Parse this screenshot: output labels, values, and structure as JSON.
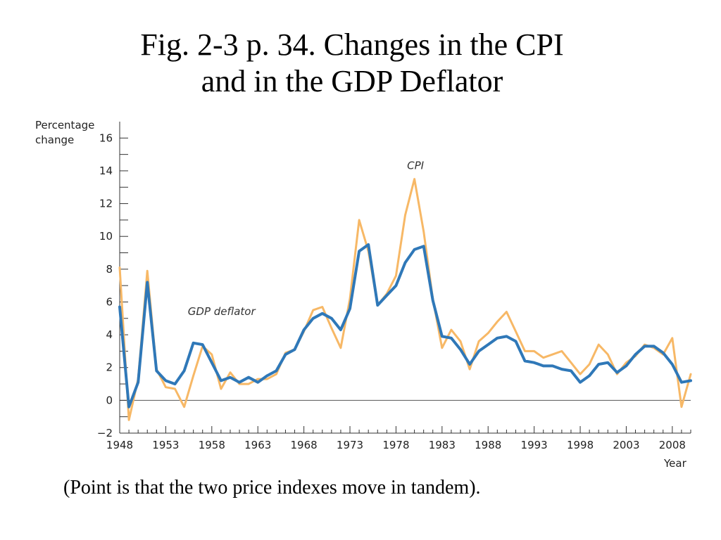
{
  "title_line1": "Fig. 2-3 p. 34. Changes in the CPI",
  "title_line2": "and in the GDP Deflator",
  "caption": "(Point is that the two price indexes move in tandem).",
  "chart_data": {
    "type": "line",
    "ylabel_line1": "Percentage",
    "ylabel_line2": "change",
    "xlabel": "Year",
    "xlim": [
      1948,
      2010
    ],
    "ylim": [
      -2,
      17
    ],
    "y_ticks": [
      -2,
      0,
      2,
      4,
      6,
      8,
      10,
      12,
      14,
      16
    ],
    "y_tick_labels": [
      "−2",
      "0",
      "2",
      "4",
      "6",
      "8",
      "10",
      "12",
      "14",
      "16"
    ],
    "x_ticks": [
      1948,
      1953,
      1958,
      1963,
      1968,
      1973,
      1978,
      1983,
      1988,
      1993,
      1998,
      2003,
      2008
    ],
    "x_tick_labels": [
      "1948",
      "1953",
      "1958",
      "1963",
      "1968",
      "1973",
      "1978",
      "1983",
      "1988",
      "1993",
      "1998",
      "2003",
      "2008"
    ],
    "annotations": [
      {
        "text": "CPI",
        "x": 1979.2,
        "y": 14.1
      },
      {
        "text": "GDP deflator",
        "x": 1955.4,
        "y": 5.2
      }
    ],
    "series": [
      {
        "name": "CPI",
        "color": "#F7B866",
        "x": [
          1948,
          1949,
          1950,
          1951,
          1952,
          1953,
          1954,
          1955,
          1956,
          1957,
          1958,
          1959,
          1960,
          1961,
          1962,
          1963,
          1964,
          1965,
          1966,
          1967,
          1968,
          1969,
          1970,
          1971,
          1972,
          1973,
          1974,
          1975,
          1976,
          1977,
          1978,
          1979,
          1980,
          1981,
          1982,
          1983,
          1984,
          1985,
          1986,
          1987,
          1988,
          1989,
          1990,
          1991,
          1992,
          1993,
          1994,
          1995,
          1996,
          1997,
          1998,
          1999,
          2000,
          2001,
          2002,
          2003,
          2004,
          2005,
          2006,
          2007,
          2008,
          2009,
          2010
        ],
        "values": [
          8.1,
          -1.2,
          1.3,
          7.9,
          1.9,
          0.8,
          0.7,
          -0.4,
          1.5,
          3.3,
          2.8,
          0.7,
          1.7,
          1.0,
          1.0,
          1.3,
          1.3,
          1.6,
          2.9,
          3.1,
          4.2,
          5.5,
          5.7,
          4.4,
          3.2,
          6.2,
          11.0,
          9.1,
          5.8,
          6.5,
          7.6,
          11.3,
          13.5,
          10.3,
          6.2,
          3.2,
          4.3,
          3.6,
          1.9,
          3.6,
          4.1,
          4.8,
          5.4,
          4.2,
          3.0,
          3.0,
          2.6,
          2.8,
          3.0,
          2.3,
          1.6,
          2.2,
          3.4,
          2.8,
          1.6,
          2.3,
          2.7,
          3.4,
          3.2,
          2.8,
          3.8,
          -0.4,
          1.6
        ]
      },
      {
        "name": "GDP deflator",
        "color": "#2F78B8",
        "x": [
          1948,
          1949,
          1950,
          1951,
          1952,
          1953,
          1954,
          1955,
          1956,
          1957,
          1958,
          1959,
          1960,
          1961,
          1962,
          1963,
          1964,
          1965,
          1966,
          1967,
          1968,
          1969,
          1970,
          1971,
          1972,
          1973,
          1974,
          1975,
          1976,
          1977,
          1978,
          1979,
          1980,
          1981,
          1982,
          1983,
          1984,
          1985,
          1986,
          1987,
          1988,
          1989,
          1990,
          1991,
          1992,
          1993,
          1994,
          1995,
          1996,
          1997,
          1998,
          1999,
          2000,
          2001,
          2002,
          2003,
          2004,
          2005,
          2006,
          2007,
          2008,
          2009,
          2010
        ],
        "values": [
          5.7,
          -0.4,
          1.1,
          7.2,
          1.8,
          1.2,
          1.0,
          1.8,
          3.5,
          3.4,
          2.3,
          1.2,
          1.4,
          1.1,
          1.4,
          1.1,
          1.5,
          1.8,
          2.8,
          3.1,
          4.3,
          5.0,
          5.3,
          5.0,
          4.3,
          5.6,
          9.1,
          9.5,
          5.8,
          6.4,
          7.0,
          8.4,
          9.2,
          9.4,
          6.1,
          3.9,
          3.8,
          3.1,
          2.2,
          3.0,
          3.4,
          3.8,
          3.9,
          3.6,
          2.4,
          2.3,
          2.1,
          2.1,
          1.9,
          1.8,
          1.1,
          1.5,
          2.2,
          2.3,
          1.7,
          2.1,
          2.8,
          3.3,
          3.3,
          2.9,
          2.2,
          1.1,
          1.2
        ]
      }
    ]
  }
}
